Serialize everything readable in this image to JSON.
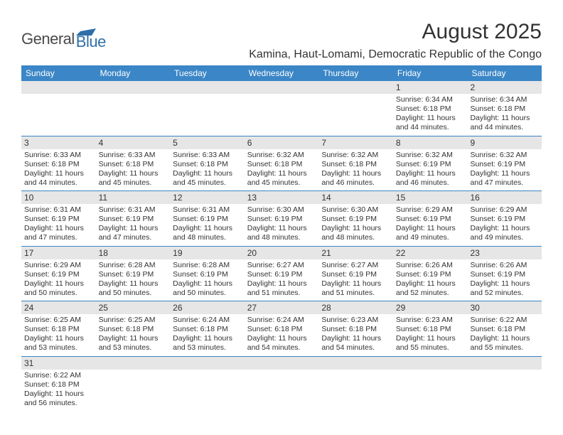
{
  "brand": {
    "general": "General",
    "blue": "Blue"
  },
  "title": "August 2025",
  "location": "Kamina, Haut-Lomami, Democratic Republic of the Congo",
  "colors": {
    "header_bar": "#3b86c6",
    "daynum_bg": "#e6e6e6",
    "row_border": "#3b86c6",
    "text": "#333333",
    "logo_blue": "#2f6fa8"
  },
  "dow": [
    "Sunday",
    "Monday",
    "Tuesday",
    "Wednesday",
    "Thursday",
    "Friday",
    "Saturday"
  ],
  "weeks": [
    [
      null,
      null,
      null,
      null,
      null,
      {
        "n": "1",
        "sr": "Sunrise: 6:34 AM",
        "ss": "Sunset: 6:18 PM",
        "dl1": "Daylight: 11 hours",
        "dl2": "and 44 minutes."
      },
      {
        "n": "2",
        "sr": "Sunrise: 6:34 AM",
        "ss": "Sunset: 6:18 PM",
        "dl1": "Daylight: 11 hours",
        "dl2": "and 44 minutes."
      }
    ],
    [
      {
        "n": "3",
        "sr": "Sunrise: 6:33 AM",
        "ss": "Sunset: 6:18 PM",
        "dl1": "Daylight: 11 hours",
        "dl2": "and 44 minutes."
      },
      {
        "n": "4",
        "sr": "Sunrise: 6:33 AM",
        "ss": "Sunset: 6:18 PM",
        "dl1": "Daylight: 11 hours",
        "dl2": "and 45 minutes."
      },
      {
        "n": "5",
        "sr": "Sunrise: 6:33 AM",
        "ss": "Sunset: 6:18 PM",
        "dl1": "Daylight: 11 hours",
        "dl2": "and 45 minutes."
      },
      {
        "n": "6",
        "sr": "Sunrise: 6:32 AM",
        "ss": "Sunset: 6:18 PM",
        "dl1": "Daylight: 11 hours",
        "dl2": "and 45 minutes."
      },
      {
        "n": "7",
        "sr": "Sunrise: 6:32 AM",
        "ss": "Sunset: 6:18 PM",
        "dl1": "Daylight: 11 hours",
        "dl2": "and 46 minutes."
      },
      {
        "n": "8",
        "sr": "Sunrise: 6:32 AM",
        "ss": "Sunset: 6:19 PM",
        "dl1": "Daylight: 11 hours",
        "dl2": "and 46 minutes."
      },
      {
        "n": "9",
        "sr": "Sunrise: 6:32 AM",
        "ss": "Sunset: 6:19 PM",
        "dl1": "Daylight: 11 hours",
        "dl2": "and 47 minutes."
      }
    ],
    [
      {
        "n": "10",
        "sr": "Sunrise: 6:31 AM",
        "ss": "Sunset: 6:19 PM",
        "dl1": "Daylight: 11 hours",
        "dl2": "and 47 minutes."
      },
      {
        "n": "11",
        "sr": "Sunrise: 6:31 AM",
        "ss": "Sunset: 6:19 PM",
        "dl1": "Daylight: 11 hours",
        "dl2": "and 47 minutes."
      },
      {
        "n": "12",
        "sr": "Sunrise: 6:31 AM",
        "ss": "Sunset: 6:19 PM",
        "dl1": "Daylight: 11 hours",
        "dl2": "and 48 minutes."
      },
      {
        "n": "13",
        "sr": "Sunrise: 6:30 AM",
        "ss": "Sunset: 6:19 PM",
        "dl1": "Daylight: 11 hours",
        "dl2": "and 48 minutes."
      },
      {
        "n": "14",
        "sr": "Sunrise: 6:30 AM",
        "ss": "Sunset: 6:19 PM",
        "dl1": "Daylight: 11 hours",
        "dl2": "and 48 minutes."
      },
      {
        "n": "15",
        "sr": "Sunrise: 6:29 AM",
        "ss": "Sunset: 6:19 PM",
        "dl1": "Daylight: 11 hours",
        "dl2": "and 49 minutes."
      },
      {
        "n": "16",
        "sr": "Sunrise: 6:29 AM",
        "ss": "Sunset: 6:19 PM",
        "dl1": "Daylight: 11 hours",
        "dl2": "and 49 minutes."
      }
    ],
    [
      {
        "n": "17",
        "sr": "Sunrise: 6:29 AM",
        "ss": "Sunset: 6:19 PM",
        "dl1": "Daylight: 11 hours",
        "dl2": "and 50 minutes."
      },
      {
        "n": "18",
        "sr": "Sunrise: 6:28 AM",
        "ss": "Sunset: 6:19 PM",
        "dl1": "Daylight: 11 hours",
        "dl2": "and 50 minutes."
      },
      {
        "n": "19",
        "sr": "Sunrise: 6:28 AM",
        "ss": "Sunset: 6:19 PM",
        "dl1": "Daylight: 11 hours",
        "dl2": "and 50 minutes."
      },
      {
        "n": "20",
        "sr": "Sunrise: 6:27 AM",
        "ss": "Sunset: 6:19 PM",
        "dl1": "Daylight: 11 hours",
        "dl2": "and 51 minutes."
      },
      {
        "n": "21",
        "sr": "Sunrise: 6:27 AM",
        "ss": "Sunset: 6:19 PM",
        "dl1": "Daylight: 11 hours",
        "dl2": "and 51 minutes."
      },
      {
        "n": "22",
        "sr": "Sunrise: 6:26 AM",
        "ss": "Sunset: 6:19 PM",
        "dl1": "Daylight: 11 hours",
        "dl2": "and 52 minutes."
      },
      {
        "n": "23",
        "sr": "Sunrise: 6:26 AM",
        "ss": "Sunset: 6:19 PM",
        "dl1": "Daylight: 11 hours",
        "dl2": "and 52 minutes."
      }
    ],
    [
      {
        "n": "24",
        "sr": "Sunrise: 6:25 AM",
        "ss": "Sunset: 6:18 PM",
        "dl1": "Daylight: 11 hours",
        "dl2": "and 53 minutes."
      },
      {
        "n": "25",
        "sr": "Sunrise: 6:25 AM",
        "ss": "Sunset: 6:18 PM",
        "dl1": "Daylight: 11 hours",
        "dl2": "and 53 minutes."
      },
      {
        "n": "26",
        "sr": "Sunrise: 6:24 AM",
        "ss": "Sunset: 6:18 PM",
        "dl1": "Daylight: 11 hours",
        "dl2": "and 53 minutes."
      },
      {
        "n": "27",
        "sr": "Sunrise: 6:24 AM",
        "ss": "Sunset: 6:18 PM",
        "dl1": "Daylight: 11 hours",
        "dl2": "and 54 minutes."
      },
      {
        "n": "28",
        "sr": "Sunrise: 6:23 AM",
        "ss": "Sunset: 6:18 PM",
        "dl1": "Daylight: 11 hours",
        "dl2": "and 54 minutes."
      },
      {
        "n": "29",
        "sr": "Sunrise: 6:23 AM",
        "ss": "Sunset: 6:18 PM",
        "dl1": "Daylight: 11 hours",
        "dl2": "and 55 minutes."
      },
      {
        "n": "30",
        "sr": "Sunrise: 6:22 AM",
        "ss": "Sunset: 6:18 PM",
        "dl1": "Daylight: 11 hours",
        "dl2": "and 55 minutes."
      }
    ],
    [
      {
        "n": "31",
        "sr": "Sunrise: 6:22 AM",
        "ss": "Sunset: 6:18 PM",
        "dl1": "Daylight: 11 hours",
        "dl2": "and 56 minutes."
      },
      null,
      null,
      null,
      null,
      null,
      null
    ]
  ]
}
